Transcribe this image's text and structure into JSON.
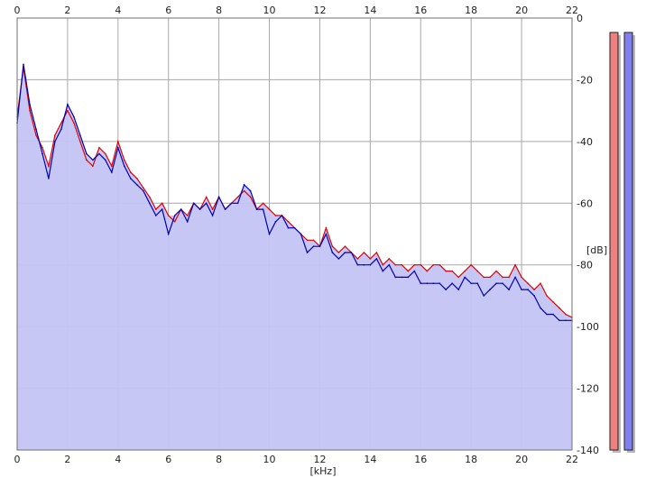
{
  "chart_data": {
    "type": "area",
    "xlabel": "[kHz]",
    "ylabel": "[dB]",
    "xlim": [
      0,
      22
    ],
    "ylim": [
      -140,
      0
    ],
    "x_ticks": [
      "0",
      "2",
      "4",
      "6",
      "8",
      "10",
      "12",
      "14",
      "16",
      "18",
      "20",
      "22"
    ],
    "y_ticks": [
      "0",
      "-20",
      "-40",
      "-60",
      "-80",
      "-100",
      "-120",
      "-140"
    ],
    "grid": true,
    "series": [
      {
        "color": "#e00000",
        "x": [
          0,
          0.25,
          0.5,
          0.75,
          1,
          1.25,
          1.5,
          1.75,
          2,
          2.25,
          2.5,
          2.75,
          3,
          3.25,
          3.5,
          3.75,
          4,
          4.25,
          4.5,
          4.75,
          5,
          5.25,
          5.5,
          5.75,
          6,
          6.25,
          6.5,
          6.75,
          7,
          7.25,
          7.5,
          7.75,
          8,
          8.25,
          8.5,
          8.75,
          9,
          9.25,
          9.5,
          9.75,
          10,
          10.25,
          10.5,
          10.75,
          11,
          11.25,
          11.5,
          11.75,
          12,
          12.25,
          12.5,
          12.75,
          13,
          13.25,
          13.5,
          13.75,
          14,
          14.25,
          14.5,
          14.75,
          15,
          15.25,
          15.5,
          15.75,
          16,
          16.25,
          16.5,
          16.75,
          17,
          17.25,
          17.5,
          17.75,
          18,
          18.25,
          18.5,
          18.75,
          19,
          19.25,
          19.5,
          19.75,
          20,
          20.25,
          20.5,
          20.75,
          21,
          21.25,
          21.5,
          21.75,
          22
        ],
        "values": [
          -32,
          -16,
          -30,
          -38,
          -42,
          -48,
          -38,
          -34,
          -30,
          -34,
          -40,
          -46,
          -48,
          -42,
          -44,
          -48,
          -40,
          -46,
          -50,
          -52,
          -55,
          -58,
          -62,
          -60,
          -64,
          -66,
          -62,
          -64,
          -60,
          -62,
          -58,
          -62,
          -58,
          -62,
          -60,
          -58,
          -56,
          -58,
          -62,
          -60,
          -62,
          -64,
          -64,
          -66,
          -68,
          -70,
          -72,
          -72,
          -74,
          -68,
          -74,
          -76,
          -74,
          -76,
          -78,
          -76,
          -78,
          -76,
          -80,
          -78,
          -80,
          -80,
          -82,
          -80,
          -80,
          -82,
          -80,
          -80,
          -82,
          -82,
          -84,
          -82,
          -80,
          -82,
          -84,
          -84,
          -82,
          -84,
          -84,
          -80,
          -84,
          -86,
          -88,
          -86,
          -90,
          -92,
          -94,
          -96,
          -97
        ]
      },
      {
        "color": "#0000b0",
        "x": [
          0,
          0.25,
          0.5,
          0.75,
          1,
          1.25,
          1.5,
          1.75,
          2,
          2.25,
          2.5,
          2.75,
          3,
          3.25,
          3.5,
          3.75,
          4,
          4.25,
          4.5,
          4.75,
          5,
          5.25,
          5.5,
          5.75,
          6,
          6.25,
          6.5,
          6.75,
          7,
          7.25,
          7.5,
          7.75,
          8,
          8.25,
          8.5,
          8.75,
          9,
          9.25,
          9.5,
          9.75,
          10,
          10.25,
          10.5,
          10.75,
          11,
          11.25,
          11.5,
          11.75,
          12,
          12.25,
          12.5,
          12.75,
          13,
          13.25,
          13.5,
          13.75,
          14,
          14.25,
          14.5,
          14.75,
          15,
          15.25,
          15.5,
          15.75,
          16,
          16.25,
          16.5,
          16.75,
          17,
          17.25,
          17.5,
          17.75,
          18,
          18.25,
          18.5,
          18.75,
          19,
          19.25,
          19.5,
          19.75,
          20,
          20.25,
          20.5,
          20.75,
          21,
          21.25,
          21.5,
          21.75,
          22
        ],
        "values": [
          -34,
          -15,
          -28,
          -36,
          -44,
          -52,
          -40,
          -36,
          -28,
          -32,
          -38,
          -44,
          -46,
          -44,
          -46,
          -50,
          -42,
          -48,
          -52,
          -54,
          -56,
          -60,
          -64,
          -62,
          -70,
          -64,
          -62,
          -66,
          -60,
          -62,
          -60,
          -64,
          -58,
          -62,
          -60,
          -60,
          -54,
          -56,
          -62,
          -62,
          -70,
          -66,
          -64,
          -68,
          -68,
          -70,
          -76,
          -74,
          -74,
          -70,
          -76,
          -78,
          -76,
          -76,
          -80,
          -80,
          -80,
          -78,
          -82,
          -80,
          -84,
          -84,
          -84,
          -82,
          -86,
          -86,
          -86,
          -86,
          -88,
          -86,
          -88,
          -84,
          -86,
          -86,
          -90,
          -88,
          -86,
          -86,
          -88,
          -84,
          -88,
          -88,
          -90,
          -94,
          -96,
          -96,
          -98,
          -98,
          -98
        ]
      }
    ]
  },
  "level_meters": [
    {
      "color": "#f08080",
      "level_db": 0
    },
    {
      "color": "#8080f0",
      "level_db": 0
    }
  ]
}
